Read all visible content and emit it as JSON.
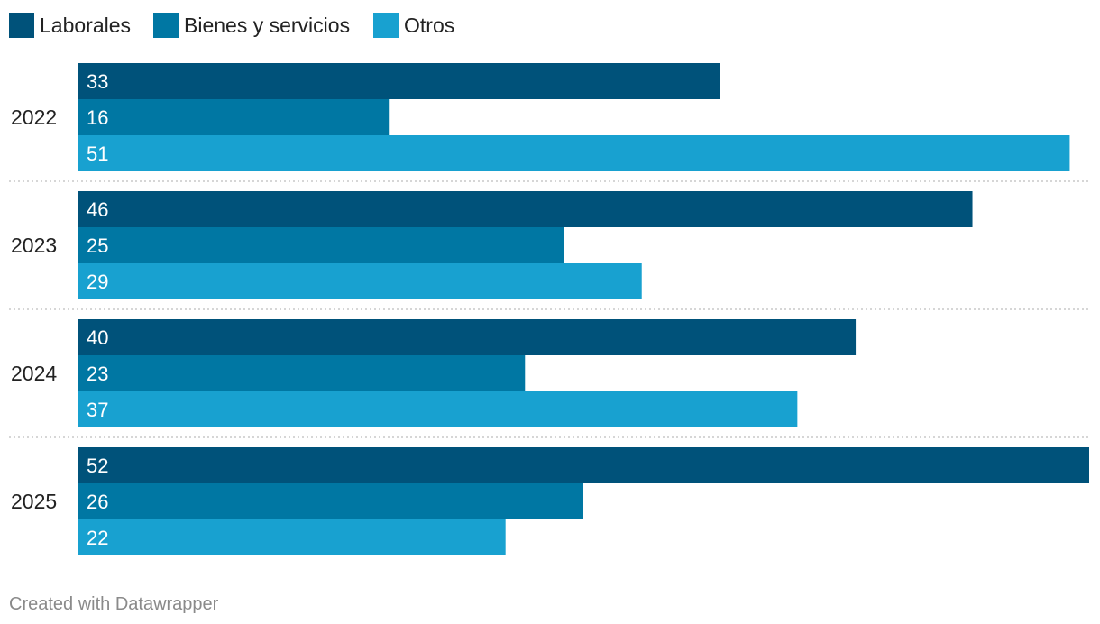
{
  "chart_data": {
    "type": "bar",
    "orientation": "horizontal",
    "grouped": true,
    "categories": [
      "2022",
      "2023",
      "2024",
      "2025"
    ],
    "series": [
      {
        "name": "Laborales",
        "color": "#00527a",
        "values": [
          33,
          46,
          40,
          52
        ]
      },
      {
        "name": "Bienes y servicios",
        "color": "#0077a3",
        "values": [
          16,
          25,
          23,
          26
        ]
      },
      {
        "name": "Otros",
        "color": "#18a1d0",
        "values": [
          51,
          29,
          37,
          22
        ]
      }
    ],
    "xlim": [
      0,
      52
    ],
    "legend_position": "top-left",
    "value_labels": "inside-start",
    "separator_style": "dotted"
  },
  "footer": {
    "credit": "Created with Datawrapper"
  }
}
